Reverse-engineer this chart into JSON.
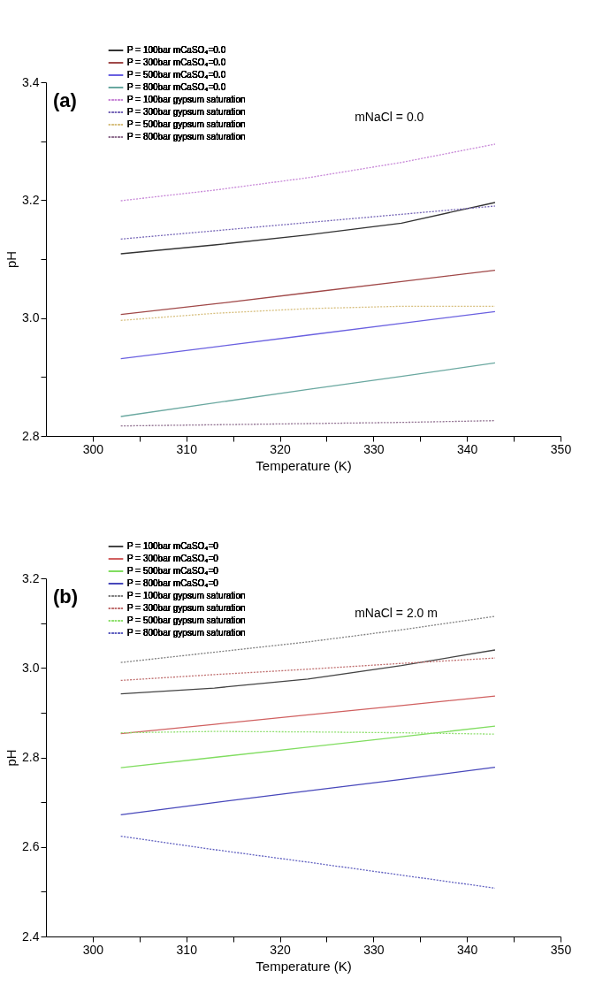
{
  "chart_data": [
    {
      "type": "line",
      "annotations": [
        "(a)",
        "mNaCl = 0.0"
      ],
      "xlabel": "Temperature (K)",
      "ylabel": "pH",
      "legend": "top left",
      "xlim": [
        295,
        350
      ],
      "xticks": [
        300,
        {
          "value": 305,
          "label": null
        },
        310,
        {
          "value": 315,
          "label": null
        },
        320,
        {
          "value": 325,
          "label": null
        },
        330,
        {
          "value": 335,
          "label": null
        },
        340,
        {
          "value": 345,
          "label": null
        },
        350
      ],
      "ylim": [
        2.8,
        3.4
      ],
      "yticks": [
        2.8,
        {
          "value": 2.9,
          "label": null
        },
        {
          "value": 3,
          "label": "3.0"
        },
        {
          "value": 3.1,
          "label": null
        },
        3.2,
        {
          "value": 3.3,
          "label": null
        },
        3.4
      ],
      "x": [
        303,
        313,
        323,
        333,
        343
      ],
      "series": [
        {
          "name": "P = 100bar mCaSO₄=0.0",
          "color": "#333333",
          "line_style": "solid",
          "values": [
            3.109,
            3.124,
            3.141,
            3.161,
            3.196
          ]
        },
        {
          "name": "P = 300bar mCaSO₄=0.0",
          "color": "#a04848",
          "line_style": "solid",
          "values": [
            3.006,
            3.024,
            3.043,
            3.062,
            3.081
          ]
        },
        {
          "name": "P = 500bar mCaSO₄=0.0",
          "color": "#6a60e0",
          "line_style": "solid",
          "values": [
            2.931,
            2.951,
            2.971,
            2.991,
            3.011
          ]
        },
        {
          "name": "P = 800bar mCaSO₄=0.0",
          "color": "#6aa8a0",
          "line_style": "solid",
          "values": [
            2.833,
            2.856,
            2.879,
            2.901,
            2.924
          ]
        },
        {
          "name": "P = 100bar gypsum saturation",
          "color": "#c888d8",
          "line_style": "dotted",
          "values": [
            3.199,
            3.217,
            3.238,
            3.264,
            3.295
          ]
        },
        {
          "name": "P = 300bar gypsum saturation",
          "color": "#7868b8",
          "line_style": "dotted",
          "values": [
            3.134,
            3.148,
            3.162,
            3.176,
            3.19
          ]
        },
        {
          "name": "P = 500bar gypsum saturation",
          "color": "#d8c080",
          "line_style": "dotted",
          "values": [
            2.996,
            3.008,
            3.016,
            3.02,
            3.02
          ]
        },
        {
          "name": "P = 800bar gypsum saturation",
          "color": "#907090",
          "line_style": "dotted",
          "values": [
            2.817,
            2.819,
            2.821,
            2.823,
            2.826
          ]
        }
      ]
    },
    {
      "type": "line",
      "annotations": [
        "(b)",
        "mNaCl = 2.0 m"
      ],
      "xlabel": "Temperature (K)",
      "ylabel": "pH",
      "legend": "top left",
      "xlim": [
        295,
        350
      ],
      "xticks": [
        300,
        {
          "value": 305,
          "label": null
        },
        310,
        {
          "value": 315,
          "label": null
        },
        320,
        {
          "value": 325,
          "label": null
        },
        330,
        {
          "value": 335,
          "label": null
        },
        340,
        {
          "value": 345,
          "label": null
        },
        350
      ],
      "ylim": [
        2.4,
        3.2
      ],
      "yticks": [
        2.4,
        {
          "value": 2.5,
          "label": null
        },
        2.6,
        {
          "value": 2.7,
          "label": null
        },
        2.8,
        {
          "value": 2.9,
          "label": null
        },
        {
          "value": 3,
          "label": "3.0"
        },
        {
          "value": 3.1,
          "label": null
        },
        3.2
      ],
      "x": [
        303,
        313,
        323,
        333,
        343
      ],
      "series": [
        {
          "name": "P = 100bar mCaSO₄=0",
          "color": "#444444",
          "line_style": "solid",
          "values": [
            2.942,
            2.955,
            2.975,
            3.005,
            3.04
          ]
        },
        {
          "name": "P = 300bar mCaSO₄=0",
          "color": "#d06060",
          "line_style": "solid",
          "values": [
            2.853,
            2.874,
            2.895,
            2.916,
            2.937
          ]
        },
        {
          "name": "P = 500bar mCaSO₄=0",
          "color": "#80dd60",
          "line_style": "solid",
          "values": [
            2.777,
            2.8,
            2.823,
            2.846,
            2.87
          ]
        },
        {
          "name": "P = 800bar mCaSO₄=0",
          "color": "#4848bb",
          "line_style": "solid",
          "values": [
            2.672,
            2.699,
            2.725,
            2.751,
            2.778
          ]
        },
        {
          "name": "P = 100bar gypsum saturation",
          "color": "#808080",
          "line_style": "dotted",
          "values": [
            3.012,
            3.035,
            3.058,
            3.085,
            3.115
          ]
        },
        {
          "name": "P = 300bar gypsum saturation",
          "color": "#c07070",
          "line_style": "dotted",
          "values": [
            2.972,
            2.985,
            2.997,
            3.01,
            3.022
          ]
        },
        {
          "name": "P = 500bar gypsum saturation",
          "color": "#90e070",
          "line_style": "dotted",
          "values": [
            2.855,
            2.858,
            2.857,
            2.855,
            2.852
          ]
        },
        {
          "name": "P = 800bar gypsum saturation",
          "color": "#6060c0",
          "line_style": "dotted",
          "values": [
            2.624,
            2.594,
            2.566,
            2.537,
            2.508
          ]
        }
      ]
    }
  ]
}
